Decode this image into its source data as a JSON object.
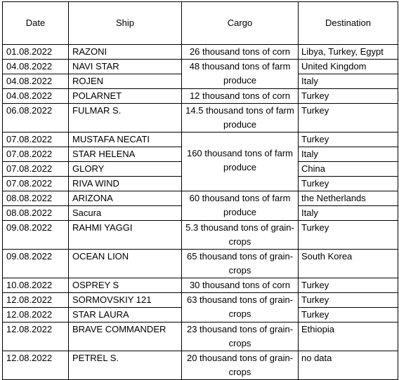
{
  "headers": {
    "date": "Date",
    "ship": "Ship",
    "cargo": "Cargo",
    "destination": "Destination"
  },
  "rows": [
    {
      "date": "01.08.2022",
      "ship": "RAZONI",
      "cargo": "26 thousand tons of corn",
      "destination": "Libya, Turkey, Egypt"
    },
    {
      "date": "04.08.2022",
      "ship": "NAVI STAR",
      "cargo": "48 thousand tons of farm produce",
      "destination": "United Kingdom"
    },
    {
      "date": "04.08.2022",
      "ship": "ROJEN",
      "destination": "Italy"
    },
    {
      "date": "04.08.2022",
      "ship": "POLARNET",
      "cargo": "12 thousand tons of corn",
      "destination": "Turkey"
    },
    {
      "date": "06.08.2022",
      "ship": "FULMAR S.",
      "cargo": "14.5 thousand tons of farm produce",
      "destination": "Turkey"
    },
    {
      "date": "07.08.2022",
      "ship": "MUSTAFA NECATI",
      "cargo": "160 thousand tons of farm produce",
      "destination": "Turkey"
    },
    {
      "date": "07.08.2022",
      "ship": "STAR HELENA",
      "destination": "Italy"
    },
    {
      "date": "07.08.2022",
      "ship": "GLORY",
      "destination": "China"
    },
    {
      "date": "07.08.2022",
      "ship": "RIVA WIND",
      "destination": "Turkey"
    },
    {
      "date": "08.08.2022",
      "ship": "ARIZONA",
      "cargo": "60 thousand tons of farm produce",
      "destination": "the Netherlands"
    },
    {
      "date": "08.08.2022",
      "ship": "Sacura",
      "destination": "Italy"
    },
    {
      "date": "09.08.2022",
      "ship": "RAHMI YAGGI",
      "cargo": "5.3 thousand tons of grain-crops",
      "destination": "Turkey"
    },
    {
      "date": "09.08.2022",
      "ship": "OCEAN LION",
      "cargo": "65 thousand tons of grain-crops",
      "destination": "South Korea"
    },
    {
      "date": "10.08.2022",
      "ship": "OSPREY S",
      "cargo": "30 thousand tons of corn",
      "destination": "Turkey"
    },
    {
      "date": "12.08.2022",
      "ship": "SORMOVSKIY 121",
      "cargo": "63 thousand tons of grain-crops",
      "destination": "Turkey"
    },
    {
      "date": "12.08.2022",
      "ship": "STAR LAURA",
      "destination": "Turkey"
    },
    {
      "date": "12.08.2022",
      "ship": "BRAVE COMMANDER",
      "cargo": "23 thousand tons of grain-crops",
      "destination": "Ethiopia"
    },
    {
      "date": "12.08.2022",
      "ship": "PETREL S.",
      "cargo": "20 thousand tons of grain-crops",
      "destination": "no data"
    }
  ]
}
